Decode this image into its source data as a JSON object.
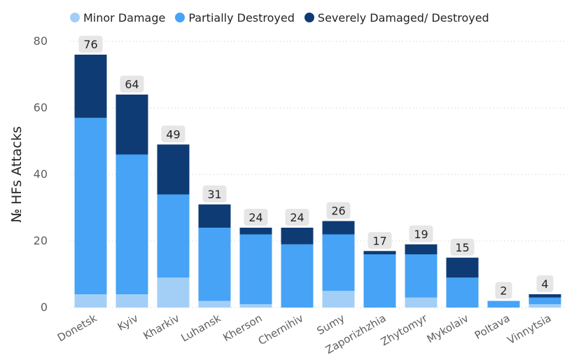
{
  "chart_data": {
    "type": "bar",
    "stacked": true,
    "categories": [
      "Donetsk",
      "Kyiv",
      "Kharkiv",
      "Luhansk",
      "Kherson",
      "Chernihiv",
      "Sumy",
      "Zaporizhzhia",
      "Zhytomyr",
      "Mykolaiv",
      "Poltava",
      "Vinnytsia"
    ],
    "series": [
      {
        "name": "Minor Damage",
        "color": "#a3cff7",
        "values": [
          4,
          4,
          9,
          2,
          1,
          0,
          5,
          0,
          3,
          0,
          0,
          1
        ]
      },
      {
        "name": "Partially Destroyed",
        "color": "#46a3f5",
        "values": [
          53,
          42,
          25,
          22,
          21,
          19,
          17,
          16,
          13,
          9,
          2,
          2
        ]
      },
      {
        "name": "Severely Damaged/ Destroyed",
        "color": "#0f3b74",
        "values": [
          19,
          18,
          15,
          7,
          2,
          5,
          4,
          1,
          3,
          6,
          0,
          1
        ]
      }
    ],
    "totals": [
      76,
      64,
      49,
      31,
      24,
      24,
      26,
      17,
      19,
      15,
      2,
      4
    ],
    "ylabel": "№ HFs Attacks",
    "ylim": [
      0,
      80
    ],
    "yticks": [
      0,
      20,
      40,
      60,
      80
    ],
    "grid": true,
    "legend": "top-left"
  },
  "colors": {
    "axis_text": "#605e5c",
    "grid": "#c8c6c4",
    "label_bg": "#e6e6e6",
    "label_text": "#252423"
  }
}
